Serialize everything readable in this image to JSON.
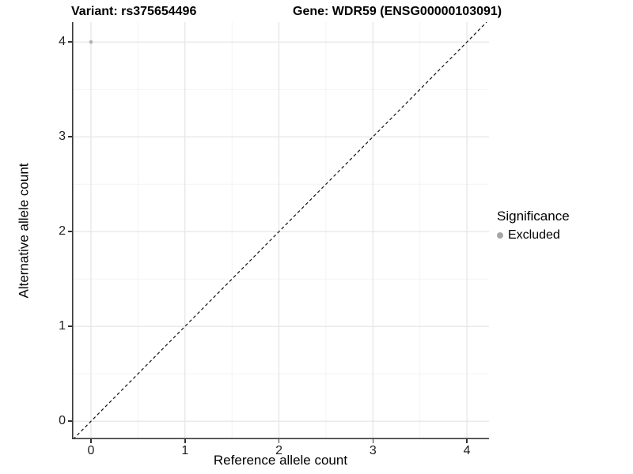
{
  "figure": {
    "title_left": "Variant: rs375654496",
    "title_right": "Gene: WDR59 (ENSG00000103091)"
  },
  "legend": {
    "title": "Significance",
    "items": [
      {
        "label": "Excluded",
        "color": "#a6a6a6"
      }
    ]
  },
  "chart_data": {
    "type": "scatter",
    "title": "Variant: rs375654496 / Gene: WDR59 (ENSG00000103091)",
    "xlabel": "Reference allele count",
    "ylabel": "Alternative allele count",
    "xlim": [
      -0.202,
      4.235
    ],
    "ylim": [
      -0.19,
      4.21
    ],
    "x_ticks": [
      0,
      1,
      2,
      3,
      4
    ],
    "y_ticks": [
      0,
      1,
      2,
      3,
      4
    ],
    "minor_ticks": [
      0.5,
      1.5,
      2.5,
      3.5
    ],
    "grid": true,
    "legend_position": "right",
    "series": [
      {
        "name": "Excluded",
        "color": "#b3b3b3",
        "points": [
          {
            "x": 0,
            "y": 4
          }
        ]
      }
    ],
    "reference_line": {
      "type": "identity",
      "equation": "y = x",
      "style": "dashed",
      "color": "#111111"
    },
    "colors": {
      "background": "#ffffff",
      "grid_major": "#e4e4e4",
      "grid_minor": "#f1f1f1",
      "axis_line": "#3a3a3a",
      "tick_mark": "#333333",
      "point": "#b3b3b3",
      "legend_dot": "#a6a6a6"
    }
  }
}
